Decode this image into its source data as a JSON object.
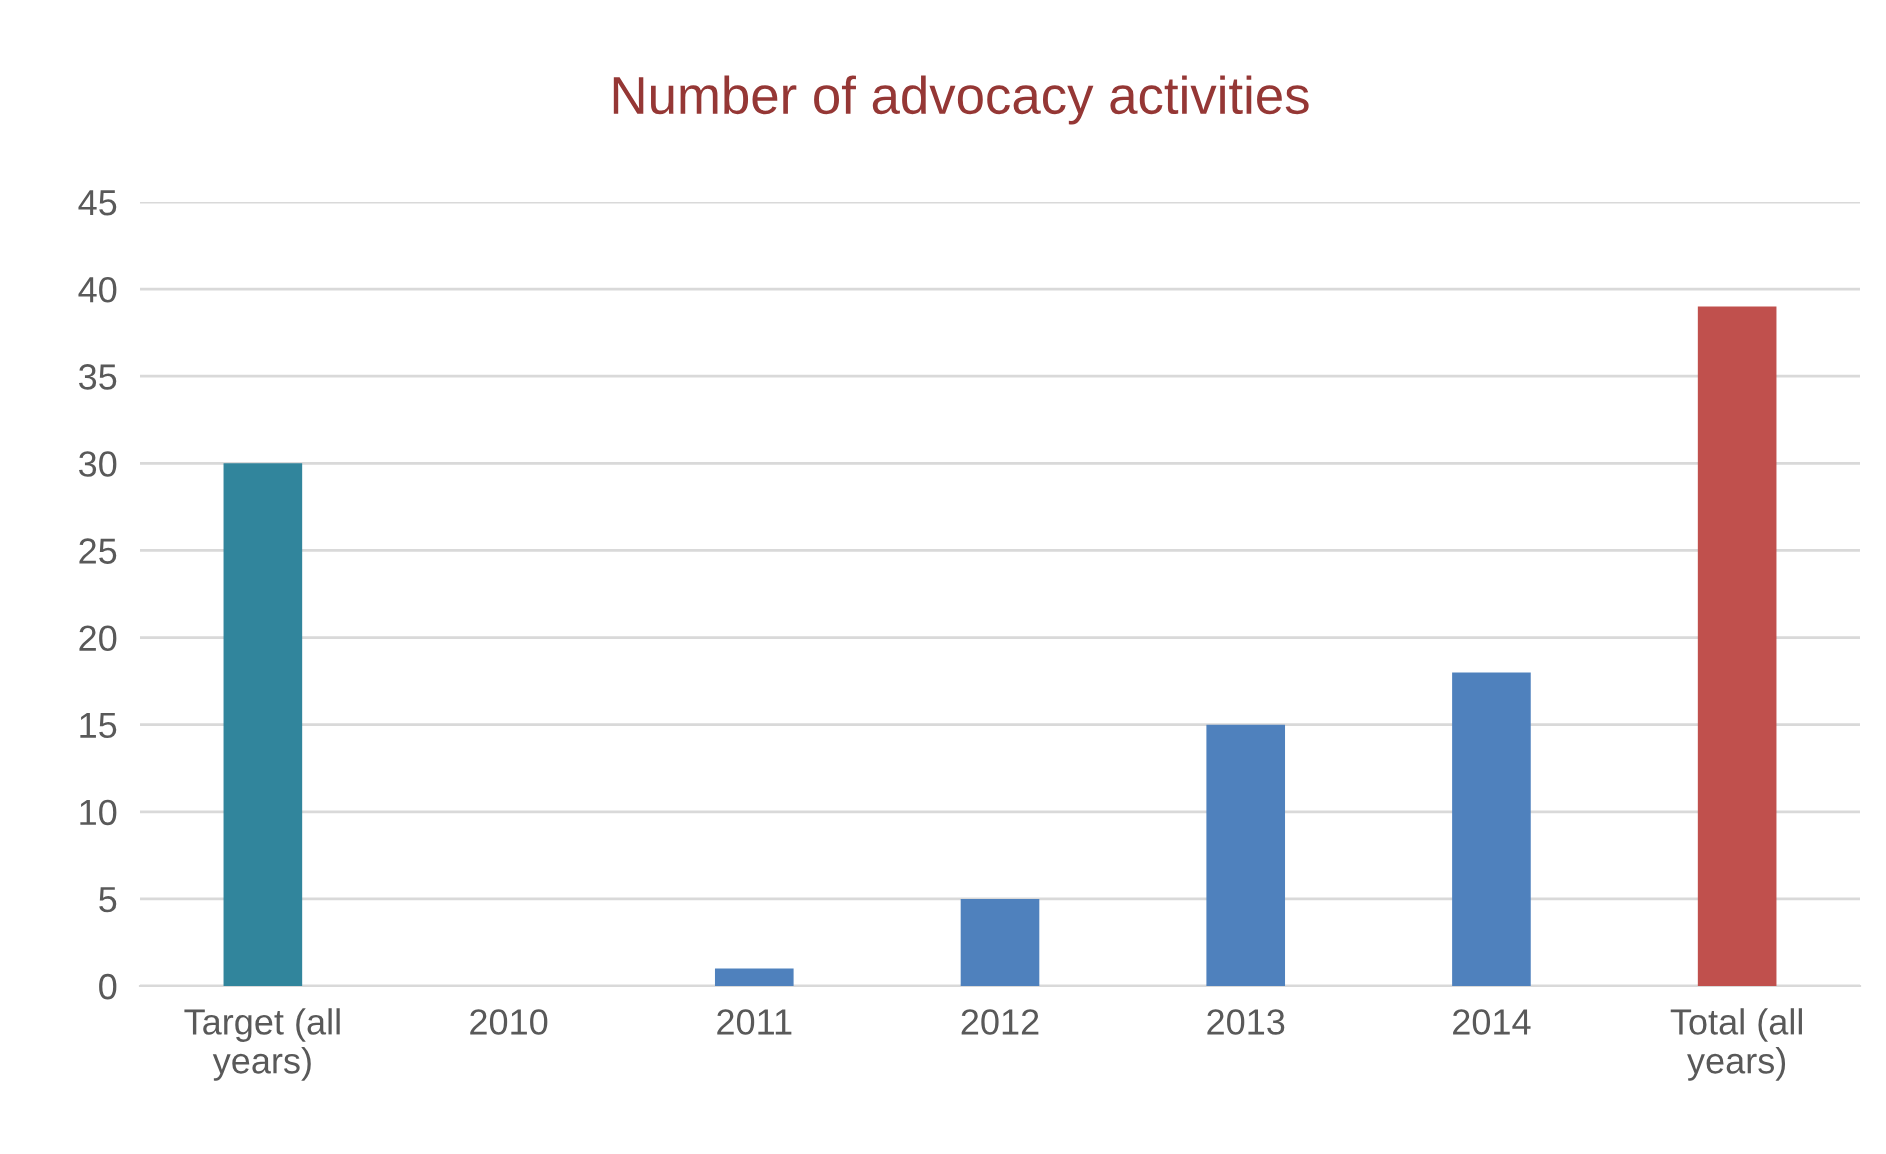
{
  "chart_data": {
    "type": "bar",
    "title": "Number of advocacy activities",
    "categories": [
      "Target (all\nyears)",
      "2010",
      "2011",
      "2012",
      "2013",
      "2014",
      "Total (all\nyears)"
    ],
    "values": [
      30,
      0,
      1,
      5,
      15,
      18,
      39
    ],
    "colors": [
      "#31859c",
      "#4f81bd",
      "#4f81bd",
      "#4f81bd",
      "#4f81bd",
      "#4f81bd",
      "#c0504d"
    ],
    "ylim": [
      0,
      45
    ],
    "yticks": [
      0,
      5,
      10,
      15,
      20,
      25,
      30,
      35,
      40,
      45
    ],
    "grid": "y",
    "legend": false
  }
}
